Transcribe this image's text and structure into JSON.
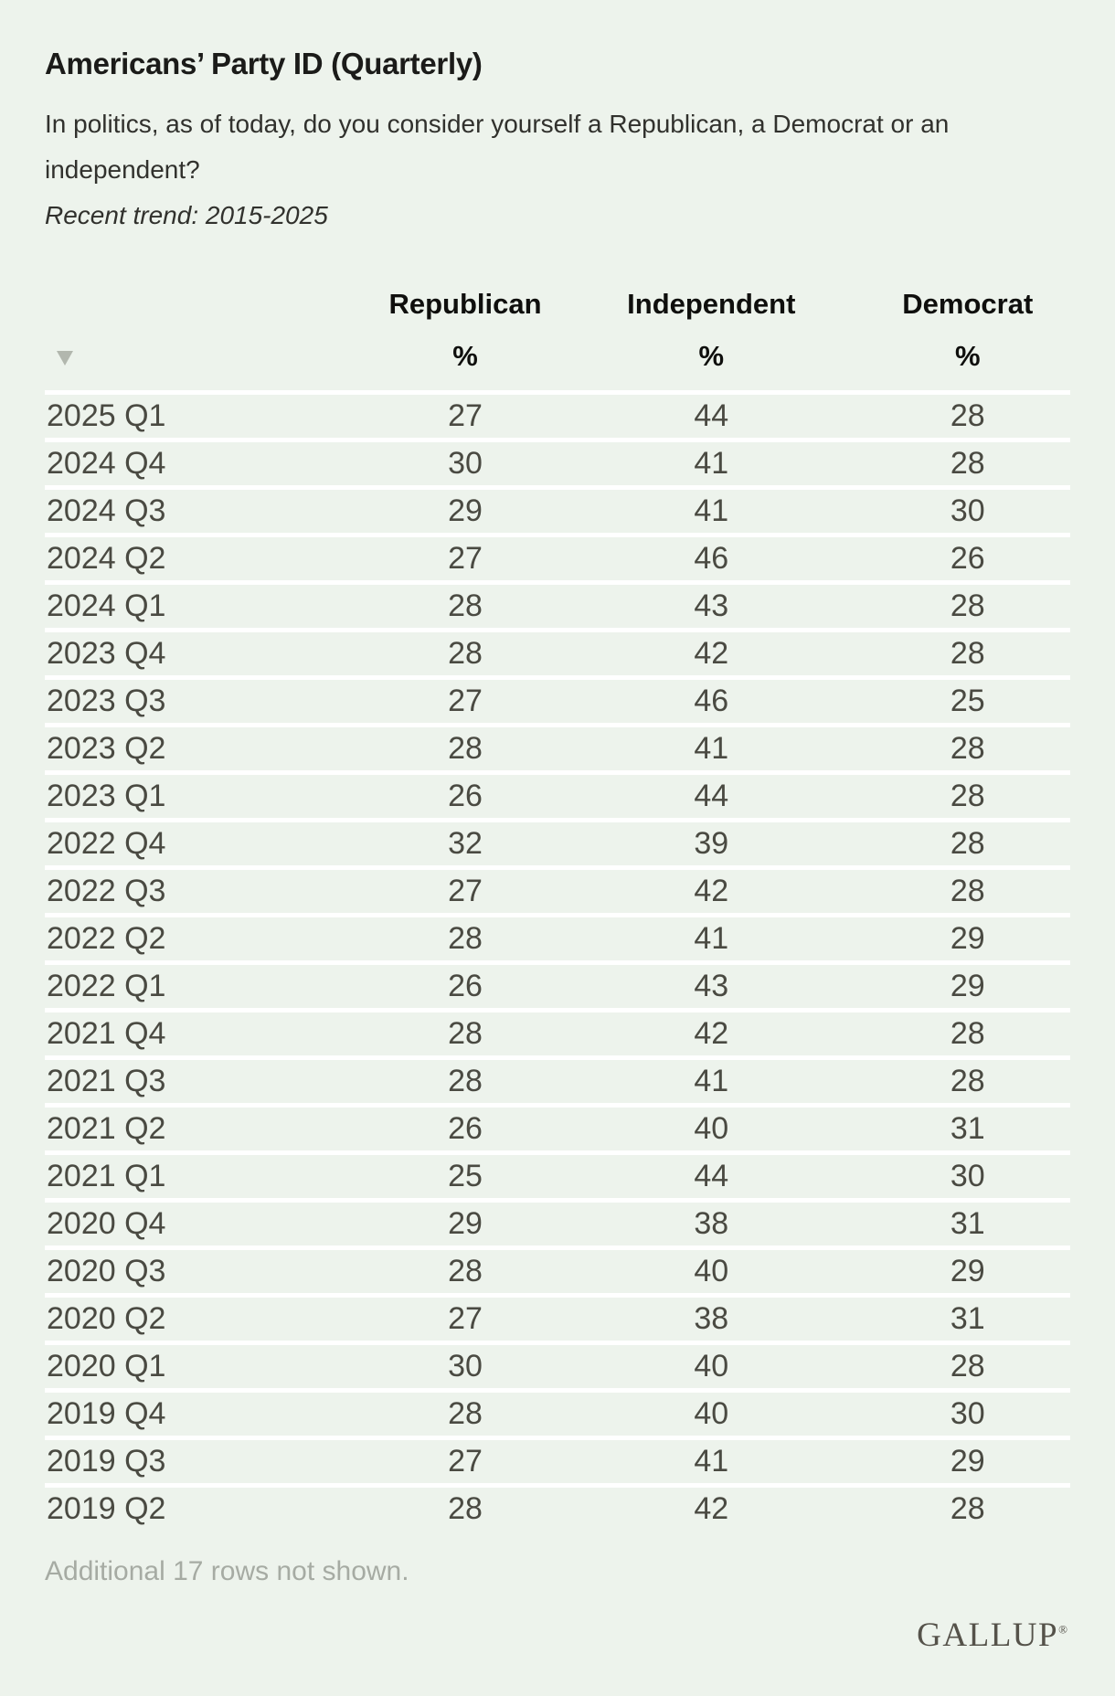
{
  "header": {
    "title": "Americans’ Party ID (Quarterly)",
    "question": "In politics, as of today, do you consider yourself a Republican, a Democrat or an independent?",
    "trend_note": "Recent trend: 2015-2025"
  },
  "chart_data": {
    "type": "table",
    "title": "Americans’ Party ID (Quarterly)",
    "columns": [
      "",
      "Republican",
      "Independent",
      "Democrat"
    ],
    "unit_row": [
      "",
      "%",
      "%",
      "%"
    ],
    "sort_icon": "sort-descending-triangle",
    "rows": [
      [
        "2025 Q1",
        27,
        44,
        28
      ],
      [
        "2024 Q4",
        30,
        41,
        28
      ],
      [
        "2024 Q3",
        29,
        41,
        30
      ],
      [
        "2024 Q2",
        27,
        46,
        26
      ],
      [
        "2024 Q1",
        28,
        43,
        28
      ],
      [
        "2023 Q4",
        28,
        42,
        28
      ],
      [
        "2023 Q3",
        27,
        46,
        25
      ],
      [
        "2023 Q2",
        28,
        41,
        28
      ],
      [
        "2023 Q1",
        26,
        44,
        28
      ],
      [
        "2022 Q4",
        32,
        39,
        28
      ],
      [
        "2022 Q3",
        27,
        42,
        28
      ],
      [
        "2022 Q2",
        28,
        41,
        29
      ],
      [
        "2022 Q1",
        26,
        43,
        29
      ],
      [
        "2021 Q4",
        28,
        42,
        28
      ],
      [
        "2021 Q3",
        28,
        41,
        28
      ],
      [
        "2021 Q2",
        26,
        40,
        31
      ],
      [
        "2021 Q1",
        25,
        44,
        30
      ],
      [
        "2020 Q4",
        29,
        38,
        31
      ],
      [
        "2020 Q3",
        28,
        40,
        29
      ],
      [
        "2020 Q2",
        27,
        38,
        31
      ],
      [
        "2020 Q1",
        30,
        40,
        28
      ],
      [
        "2019 Q4",
        28,
        40,
        30
      ],
      [
        "2019 Q3",
        27,
        41,
        29
      ],
      [
        "2019 Q2",
        28,
        42,
        28
      ]
    ]
  },
  "footer": {
    "note": "Additional 17 rows not shown.",
    "brand": "GALLUP",
    "brand_reg": "®"
  },
  "colors": {
    "background": "#edf3ec",
    "row_separator": "#ffffff",
    "title_text": "#1b1b19",
    "body_text": "#31312d",
    "cell_text": "#4a4a42",
    "muted_text": "#a6aba3",
    "sort_triangle": "#b2b7ae",
    "brand_text": "#55524a"
  }
}
